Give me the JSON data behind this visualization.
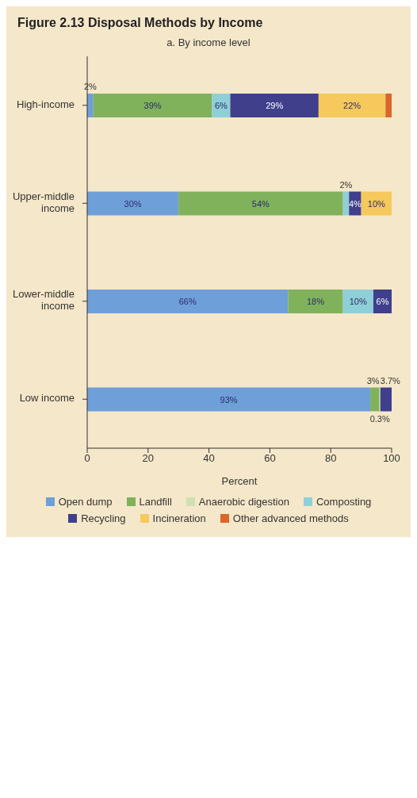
{
  "chart_data": {
    "type": "bar",
    "orientation": "horizontal",
    "stacked": true,
    "title": "Figure 2.13 Disposal Methods by Income",
    "subtitle": "a. By income level",
    "xlabel": "Percent",
    "categories": [
      "High-income",
      "Upper-middle income",
      "Lower-middle income",
      "Low income"
    ],
    "series": [
      {
        "name": "Open dump",
        "color": "#6f9fd8",
        "values": [
          2,
          30,
          66,
          93
        ],
        "value_labels": [
          "2%",
          "30%",
          "66%",
          "93%"
        ]
      },
      {
        "name": "Landfill",
        "color": "#80b25c",
        "values": [
          39,
          54,
          18,
          3
        ],
        "value_labels": [
          "39%",
          "54%",
          "18%",
          "3%"
        ]
      },
      {
        "name": "Anaerobic digestion",
        "color": "#cfe0b4",
        "values": [
          null,
          null,
          null,
          0.3
        ],
        "value_labels": [
          null,
          null,
          null,
          "0.3%"
        ]
      },
      {
        "name": "Composting",
        "color": "#8fcfd8",
        "values": [
          6,
          2,
          10,
          null
        ],
        "value_labels": [
          "6%",
          "2%",
          "10%",
          null
        ]
      },
      {
        "name": "Recycling",
        "color": "#3f3f8c",
        "values": [
          29,
          4,
          6,
          3.7
        ],
        "value_labels": [
          "29%",
          "4%",
          "6%",
          "3.7%"
        ]
      },
      {
        "name": "Incineration",
        "color": "#f5c95c",
        "values": [
          22,
          10,
          null,
          null
        ],
        "value_labels": [
          "22%",
          "10%",
          null,
          null
        ]
      },
      {
        "name": "Other advanced methods",
        "color": "#d9662b",
        "values": [
          2,
          null,
          null,
          null
        ],
        "value_labels": [
          null,
          null,
          null,
          null
        ]
      }
    ],
    "xlim": [
      0,
      100
    ],
    "xticks": [
      0,
      20,
      40,
      60,
      80,
      100
    ],
    "grid": false,
    "legend": "bottom"
  }
}
